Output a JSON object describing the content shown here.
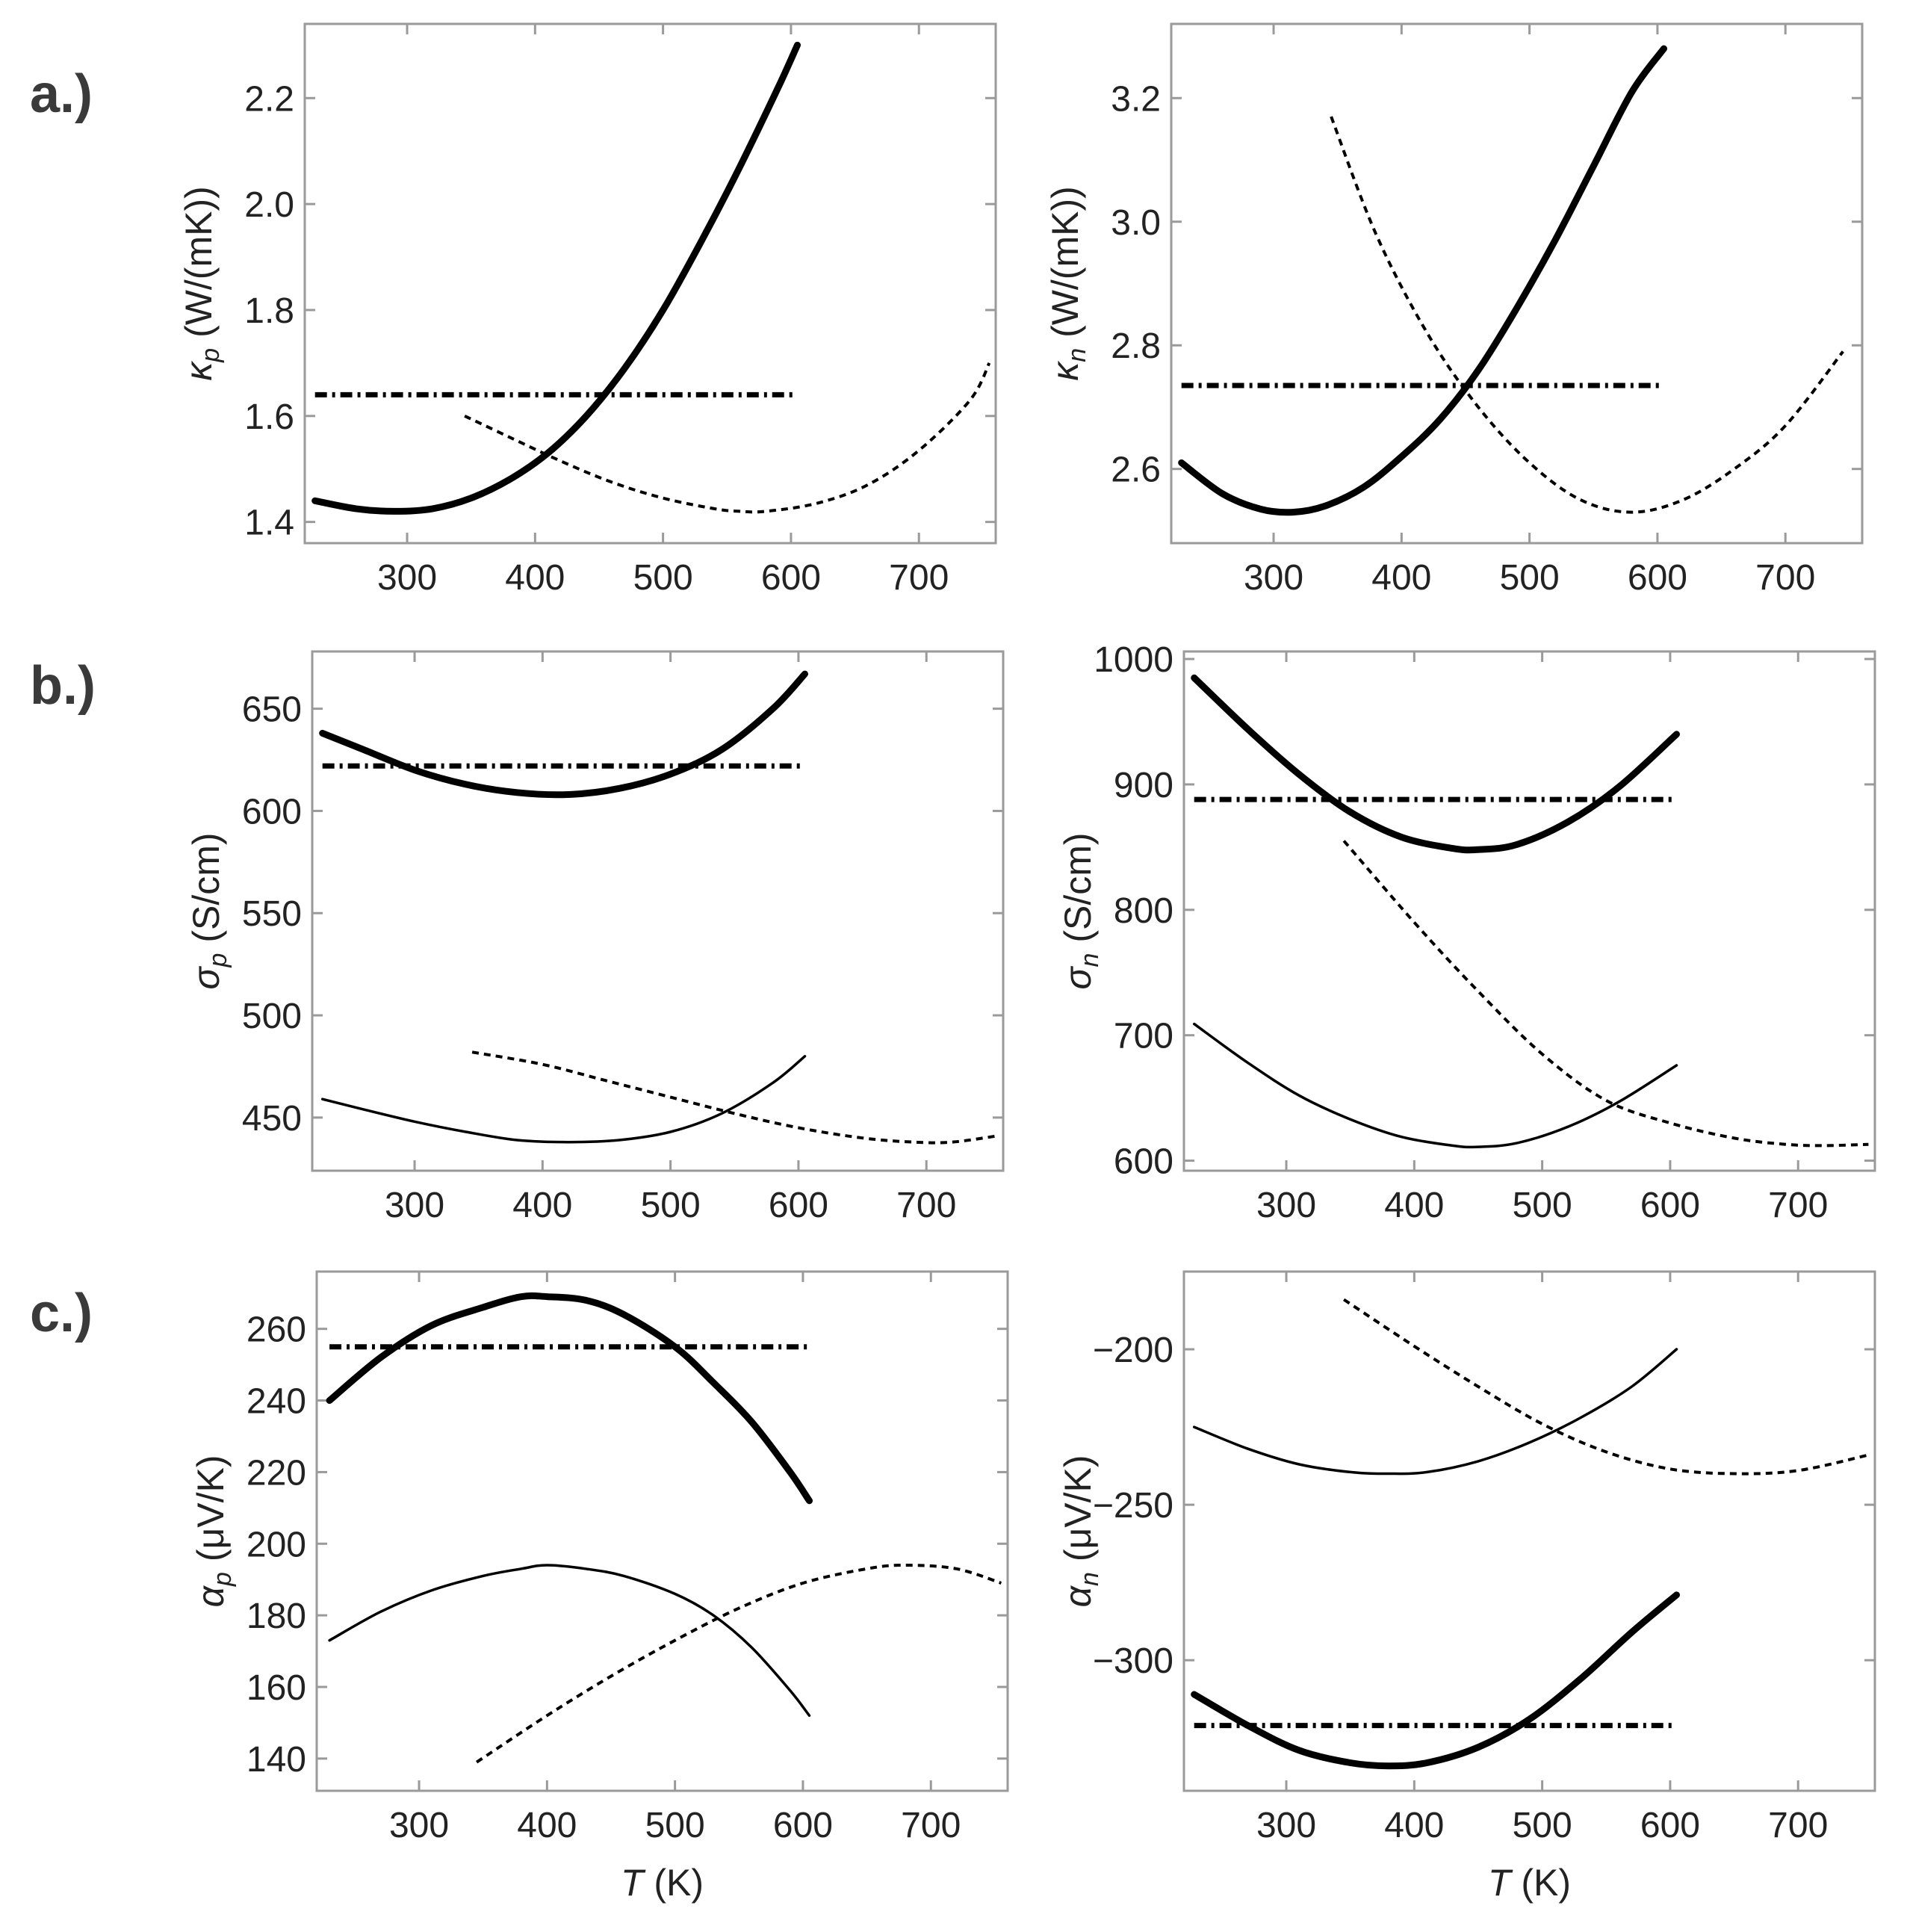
{
  "panel_labels": [
    "a.)",
    "b.)",
    "c.)"
  ],
  "chart_data": [
    {
      "type": "line",
      "panel": "a.)",
      "ylabel_symbol": "κ",
      "ylabel_sub": "p",
      "ylabel_rest": " (W/(mK))",
      "xlabel": "",
      "xlim": [
        220,
        760
      ],
      "ylim": [
        1.36,
        2.34
      ],
      "xticks": [
        300,
        400,
        500,
        600,
        700
      ],
      "yticks": [
        1.4,
        1.6,
        1.8,
        2.0,
        2.2
      ],
      "ytick_labels": [
        "1.4",
        "1.6",
        "1.8",
        "2.0",
        "2.2"
      ],
      "series": [
        {
          "name": "thick",
          "style": "thick",
          "x": [
            228,
            260,
            290,
            320,
            350,
            380,
            410,
            440,
            470,
            500,
            530,
            560,
            590,
            605
          ],
          "y": [
            1.44,
            1.425,
            1.42,
            1.425,
            1.445,
            1.48,
            1.53,
            1.6,
            1.69,
            1.8,
            1.93,
            2.07,
            2.22,
            2.3
          ]
        },
        {
          "name": "dashed",
          "style": "dashed",
          "x": [
            345,
            380,
            420,
            460,
            500,
            540,
            560,
            580,
            620,
            660,
            700,
            740,
            755
          ],
          "y": [
            1.6,
            1.56,
            1.515,
            1.475,
            1.445,
            1.425,
            1.42,
            1.42,
            1.435,
            1.47,
            1.535,
            1.63,
            1.7
          ]
        },
        {
          "name": "dash-dot",
          "style": "dashdot",
          "x": [
            228,
            605
          ],
          "y": [
            1.64,
            1.64
          ]
        }
      ]
    },
    {
      "type": "line",
      "panel": "a.) right",
      "ylabel_symbol": "κ",
      "ylabel_sub": "n",
      "ylabel_rest": " (W/(mK))",
      "xlabel": "",
      "xlim": [
        220,
        760
      ],
      "ylim": [
        2.48,
        3.32
      ],
      "xticks": [
        300,
        400,
        500,
        600,
        700
      ],
      "yticks": [
        2.6,
        2.8,
        3.0,
        3.2
      ],
      "ytick_labels": [
        "2.6",
        "2.8",
        "3.0",
        "3.2"
      ],
      "series": [
        {
          "name": "thick",
          "style": "thick",
          "x": [
            228,
            260,
            290,
            315,
            340,
            370,
            400,
            430,
            460,
            490,
            520,
            550,
            580,
            605
          ],
          "y": [
            2.61,
            2.56,
            2.535,
            2.53,
            2.54,
            2.57,
            2.62,
            2.68,
            2.76,
            2.86,
            2.97,
            3.09,
            3.21,
            3.28
          ]
        },
        {
          "name": "dashed",
          "style": "dashed",
          "x": [
            345,
            380,
            420,
            460,
            500,
            540,
            580,
            620,
            660,
            700,
            745
          ],
          "y": [
            3.17,
            2.98,
            2.82,
            2.7,
            2.61,
            2.55,
            2.53,
            2.55,
            2.6,
            2.67,
            2.79
          ]
        },
        {
          "name": "dash-dot",
          "style": "dashdot",
          "x": [
            228,
            605
          ],
          "y": [
            2.735,
            2.735
          ]
        }
      ]
    },
    {
      "type": "line",
      "panel": "b.)",
      "ylabel_symbol": "σ",
      "ylabel_sub": "p",
      "ylabel_rest": " (S/cm)",
      "xlabel": "",
      "xlim": [
        220,
        760
      ],
      "ylim": [
        424,
        678
      ],
      "xticks": [
        300,
        400,
        500,
        600,
        700
      ],
      "yticks": [
        450,
        500,
        550,
        600,
        650
      ],
      "ytick_labels": [
        "450",
        "500",
        "550",
        "600",
        "650"
      ],
      "series": [
        {
          "name": "thick",
          "style": "thick",
          "x": [
            228,
            260,
            300,
            340,
            380,
            420,
            460,
            500,
            540,
            580,
            605
          ],
          "y": [
            638,
            630,
            620,
            613,
            609,
            608,
            611,
            618,
            630,
            650,
            667
          ]
        },
        {
          "name": "thin",
          "style": "thin",
          "x": [
            228,
            260,
            300,
            340,
            380,
            420,
            460,
            500,
            540,
            580,
            605
          ],
          "y": [
            459,
            454,
            448,
            443,
            439,
            438,
            439,
            443,
            452,
            467,
            480
          ]
        },
        {
          "name": "dashed",
          "style": "dashed",
          "x": [
            345,
            400,
            450,
            500,
            550,
            600,
            650,
            690,
            720,
            755
          ],
          "y": [
            482,
            476,
            468,
            460,
            452,
            445,
            440,
            438,
            438,
            441
          ]
        },
        {
          "name": "dash-dot",
          "style": "dashdot",
          "x": [
            228,
            605
          ],
          "y": [
            622,
            622
          ]
        }
      ]
    },
    {
      "type": "line",
      "panel": "b.) right",
      "ylabel_symbol": "σ",
      "ylabel_sub": "n",
      "ylabel_rest": " (S/cm)",
      "xlabel": "",
      "xlim": [
        220,
        760
      ],
      "ylim": [
        592,
        1006
      ],
      "xticks": [
        300,
        400,
        500,
        600,
        700
      ],
      "yticks": [
        600,
        700,
        800,
        900,
        1000
      ],
      "ytick_labels": [
        "600",
        "700",
        "800",
        "900",
        "1000"
      ],
      "series": [
        {
          "name": "thick",
          "style": "thick",
          "x": [
            228,
            270,
            310,
            350,
            390,
            430,
            450,
            480,
            520,
            560,
            605
          ],
          "y": [
            985,
            944,
            908,
            878,
            858,
            849,
            848,
            852,
            870,
            898,
            940
          ]
        },
        {
          "name": "thin",
          "style": "thin",
          "x": [
            228,
            270,
            310,
            350,
            390,
            430,
            450,
            480,
            520,
            560,
            605
          ],
          "y": [
            709,
            678,
            652,
            633,
            619,
            612,
            611,
            614,
            627,
            647,
            676
          ]
        },
        {
          "name": "dashed",
          "style": "dashed",
          "x": [
            345,
            400,
            450,
            500,
            550,
            600,
            650,
            690,
            720,
            755
          ],
          "y": [
            855,
            790,
            735,
            685,
            648,
            630,
            618,
            613,
            612,
            613
          ]
        },
        {
          "name": "dash-dot",
          "style": "dashdot",
          "x": [
            228,
            605
          ],
          "y": [
            888,
            888
          ]
        }
      ]
    },
    {
      "type": "line",
      "panel": "c.)",
      "ylabel_symbol": "α",
      "ylabel_sub": "p",
      "ylabel_rest": " (μV/K)",
      "xlabel": "T (K)",
      "xlim": [
        220,
        760
      ],
      "ylim": [
        131,
        276
      ],
      "xticks": [
        300,
        400,
        500,
        600,
        700
      ],
      "yticks": [
        140,
        160,
        180,
        200,
        220,
        240,
        260
      ],
      "ytick_labels": [
        "140",
        "160",
        "180",
        "200",
        "220",
        "240",
        "260"
      ],
      "series": [
        {
          "name": "thick",
          "style": "thick",
          "x": [
            230,
            270,
            310,
            350,
            380,
            400,
            430,
            460,
            500,
            530,
            560,
            590,
            605
          ],
          "y": [
            240,
            252,
            261,
            266,
            269,
            269,
            268,
            264,
            255,
            245,
            234,
            220,
            212
          ]
        },
        {
          "name": "thin",
          "style": "thin",
          "x": [
            230,
            270,
            310,
            350,
            380,
            400,
            430,
            460,
            500,
            530,
            560,
            590,
            605
          ],
          "y": [
            173,
            181,
            187,
            191,
            193,
            194,
            193,
            191,
            186,
            180,
            171,
            159,
            152
          ]
        },
        {
          "name": "dashed",
          "style": "dashed",
          "x": [
            345,
            400,
            450,
            500,
            550,
            600,
            650,
            680,
            720,
            755
          ],
          "y": [
            139,
            152,
            163,
            173,
            182,
            189,
            193,
            194,
            193,
            189
          ]
        },
        {
          "name": "dash-dot",
          "style": "dashdot",
          "x": [
            230,
            605
          ],
          "y": [
            255,
            255
          ]
        }
      ]
    },
    {
      "type": "line",
      "panel": "c.) right",
      "ylabel_symbol": "α",
      "ylabel_sub": "n",
      "ylabel_rest": " (μV/K)",
      "xlabel": "T (K)",
      "xlim": [
        220,
        760
      ],
      "ylim": [
        -342,
        -175
      ],
      "xticks": [
        300,
        400,
        500,
        600,
        700
      ],
      "yticks": [
        -300,
        -250,
        -200
      ],
      "ytick_labels": [
        "−300",
        "−250",
        "−200"
      ],
      "series": [
        {
          "name": "thick",
          "style": "thick",
          "x": [
            228,
            270,
            310,
            350,
            380,
            410,
            450,
            490,
            530,
            570,
            605
          ],
          "y": [
            -311,
            -321,
            -329,
            -333,
            -334,
            -333,
            -328,
            -319,
            -306,
            -291,
            -279
          ]
        },
        {
          "name": "thin",
          "style": "thin",
          "x": [
            228,
            270,
            310,
            350,
            380,
            410,
            450,
            490,
            530,
            570,
            605
          ],
          "y": [
            -225,
            -232,
            -237,
            -239.5,
            -240,
            -239.5,
            -236,
            -230,
            -222,
            -212,
            -200
          ]
        },
        {
          "name": "dashed",
          "style": "dashed",
          "x": [
            345,
            400,
            450,
            500,
            550,
            600,
            650,
            700,
            755
          ],
          "y": [
            -184,
            -199,
            -212,
            -224,
            -233,
            -238.5,
            -240,
            -239,
            -234
          ]
        },
        {
          "name": "dash-dot",
          "style": "dashdot",
          "x": [
            228,
            605
          ],
          "y": [
            -321,
            -321
          ]
        }
      ]
    }
  ]
}
